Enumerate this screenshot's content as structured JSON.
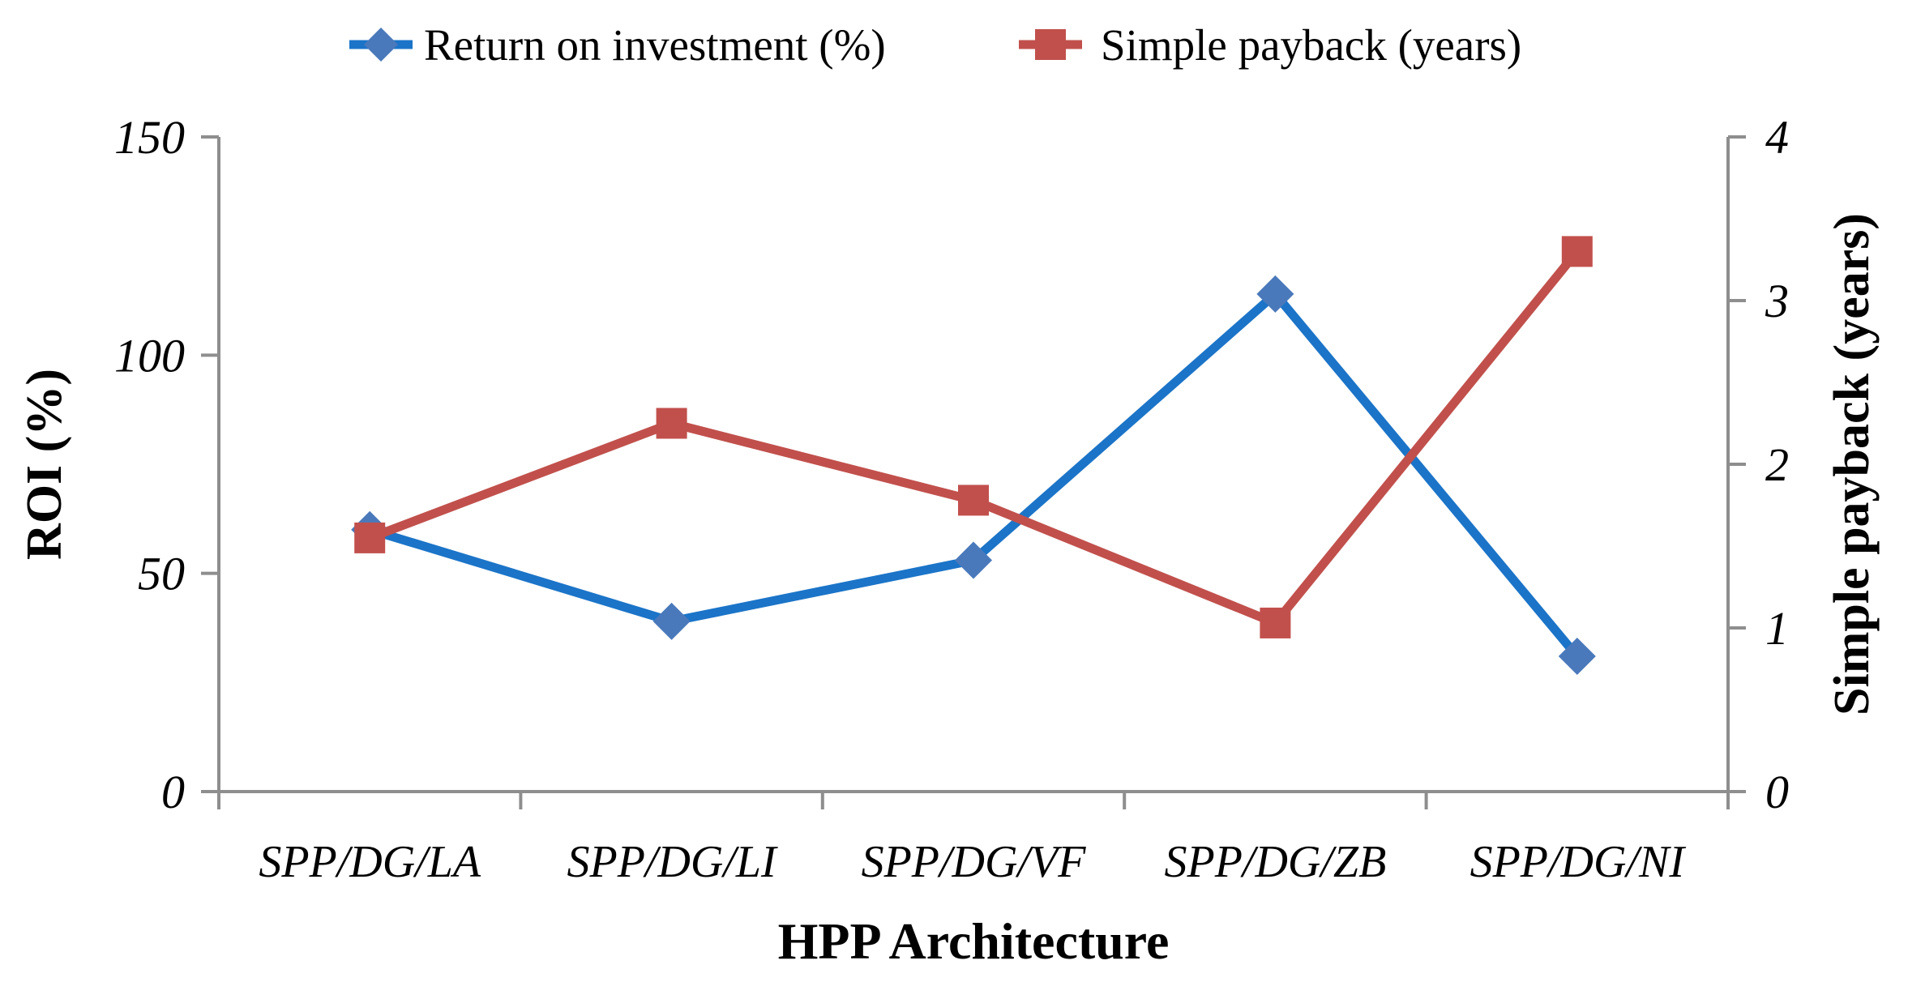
{
  "chart_data": {
    "type": "line",
    "title": "",
    "categories": [
      "SPP/DG/LA",
      "SPP/DG/LI",
      "SPP/DG/VF",
      "SPP/DG/ZB",
      "SPP/DG/NI"
    ],
    "series": [
      {
        "name": "Return on investment (%)",
        "axis": "left",
        "marker": "diamond",
        "color": "#1B74C8",
        "marker_color": "#4A79BB",
        "values": [
          60,
          39,
          53,
          114,
          31
        ]
      },
      {
        "name": "Simple payback (years)",
        "axis": "right",
        "marker": "square",
        "color": "#C1504C",
        "marker_color": "#C1504C",
        "values": [
          1.55,
          2.25,
          1.78,
          1.03,
          3.3
        ]
      }
    ],
    "x_axis": {
      "label": "HPP Architecture"
    },
    "left_axis": {
      "label": "ROI (%)",
      "ticks": [
        0,
        50,
        100,
        150
      ],
      "range": [
        0,
        150
      ]
    },
    "right_axis": {
      "label": "Simple payback (years)",
      "ticks": [
        0,
        1,
        2,
        3,
        4
      ],
      "range": [
        0,
        4
      ]
    },
    "legend_position": "top",
    "grid": false,
    "axis_color": "#8E8E8E",
    "background": "#FFFFFF"
  }
}
